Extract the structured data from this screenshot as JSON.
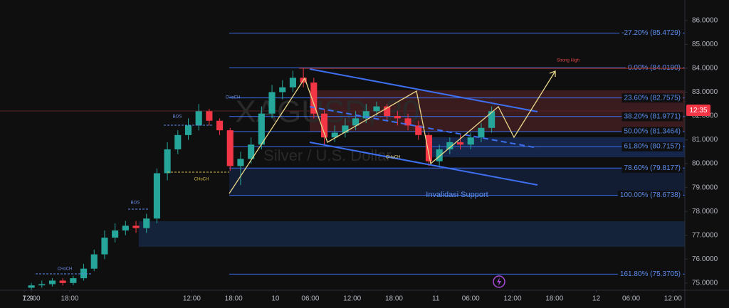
{
  "chart_data": {
    "type": "candlestick",
    "watermark": "XAGUSD, 30",
    "subtitle": "Silver / U.S. Dollar",
    "up_color": "#26a69a",
    "down_color": "#f23645",
    "x": [
      9,
      12,
      15,
      18,
      21,
      24,
      27,
      30,
      33,
      36,
      39,
      42,
      45,
      48,
      51,
      54,
      57,
      60,
      63,
      66,
      69,
      72,
      75,
      78,
      81,
      84,
      87,
      90,
      93,
      96,
      99,
      102,
      105,
      108,
      111,
      114,
      117,
      120,
      123,
      126,
      129,
      132,
      135,
      138,
      141
    ],
    "open": [
      74.8,
      74.9,
      74.95,
      75.1,
      75.0,
      75.2,
      75.6,
      76.2,
      76.9,
      77.2,
      77.4,
      77.3,
      77.7,
      79.6,
      80.6,
      81.2,
      81.6,
      82.2,
      81.8,
      81.4,
      79.9,
      80.2,
      80.8,
      82.1,
      83.0,
      83.2,
      83.6,
      83.4,
      82.1,
      81.1,
      81.3,
      81.6,
      81.9,
      82.2,
      82.4,
      82.0,
      81.9,
      81.6,
      81.2,
      80.1,
      80.6,
      80.9,
      80.8,
      81.1,
      81.5
    ],
    "close": [
      74.9,
      74.95,
      75.1,
      75.0,
      75.2,
      75.6,
      76.2,
      76.9,
      77.2,
      77.4,
      77.3,
      77.7,
      79.6,
      80.6,
      81.2,
      81.6,
      82.2,
      81.8,
      81.4,
      79.9,
      80.2,
      80.8,
      82.1,
      83.0,
      83.2,
      83.6,
      83.4,
      82.1,
      81.1,
      81.3,
      81.6,
      81.9,
      82.2,
      82.4,
      82.0,
      81.9,
      81.6,
      81.2,
      80.1,
      80.6,
      80.9,
      80.8,
      81.1,
      81.5,
      82.2
    ],
    "high": [
      75.0,
      75.1,
      75.2,
      75.2,
      75.3,
      75.8,
      76.4,
      77.2,
      77.5,
      77.6,
      77.6,
      77.9,
      79.8,
      80.9,
      81.4,
      81.9,
      82.5,
      82.3,
      81.9,
      81.5,
      80.5,
      81.1,
      82.4,
      83.3,
      83.5,
      83.9,
      84.0,
      83.6,
      82.3,
      81.6,
      81.9,
      82.2,
      82.5,
      82.6,
      82.5,
      82.2,
      82.1,
      81.8,
      81.3,
      80.8,
      81.1,
      81.2,
      81.3,
      81.7,
      82.4
    ],
    "low": [
      74.7,
      74.8,
      74.85,
      74.9,
      74.9,
      75.1,
      75.5,
      76.0,
      76.7,
      77.0,
      77.1,
      77.1,
      77.5,
      79.3,
      80.4,
      81.0,
      81.4,
      81.6,
      81.2,
      79.7,
      79.1,
      80.0,
      80.6,
      81.9,
      82.7,
      83.0,
      83.2,
      81.9,
      80.8,
      80.9,
      81.1,
      81.4,
      81.7,
      82.0,
      81.8,
      81.6,
      81.4,
      81.0,
      79.9,
      79.9,
      80.4,
      80.6,
      80.6,
      80.9,
      81.3
    ],
    "xlim": [
      0,
      196
    ],
    "xticks": [
      {
        "value": 9,
        "label": "12:00"
      },
      {
        "value": 20,
        "label": "18:00"
      },
      7,
      9,
      {
        "value": 55,
        "label": "12:00"
      },
      {
        "value": 67,
        "label": "18:00"
      },
      {
        "value": 79,
        "label": "10"
      },
      {
        "value": 89,
        "label": "06:00"
      },
      {
        "value": 101,
        "label": "12:00"
      },
      {
        "value": 113,
        "label": "18:00"
      },
      {
        "value": 125,
        "label": "11"
      },
      {
        "value": 135,
        "label": "06:00"
      },
      {
        "value": 147,
        "label": "12:00"
      },
      {
        "value": 159,
        "label": "18:00"
      },
      {
        "value": 171,
        "label": "12"
      },
      {
        "value": 181,
        "label": "06:00"
      },
      {
        "value": 193,
        "label": "12:00"
      }
    ],
    "ylim": [
      74.13,
      86.86
    ],
    "yticks": [
      {
        "value": 86,
        "label": "86.0000"
      },
      {
        "value": 85,
        "label": "85.0000"
      },
      {
        "value": 84,
        "label": "84.0000"
      },
      {
        "value": 83,
        "label": "83.0000"
      },
      {
        "value": 82,
        "label": "82.0000"
      },
      {
        "value": 81,
        "label": "81.0000"
      },
      {
        "value": 80,
        "label": "80.0000"
      },
      {
        "value": 79,
        "label": "79.0000"
      },
      {
        "value": 78,
        "label": "78.0000"
      },
      {
        "value": 77,
        "label": "77.0000"
      },
      {
        "value": 76,
        "label": "76.0000"
      },
      {
        "value": 75,
        "label": "75.0000"
      }
    ],
    "fib_levels": [
      {
        "value": 85.4729,
        "label": "-27.20% (85.4729)"
      },
      {
        "value": 84.019,
        "label": "0.00% (84.0190)"
      },
      {
        "value": 82.7575,
        "label": "23.60% (82.7575)"
      },
      {
        "value": 81.9771,
        "label": "38.20% (81.9771)"
      },
      {
        "value": 81.3464,
        "label": "50.00% (81.3464)"
      },
      {
        "value": 80.7157,
        "label": "61.80% (80.7157)"
      },
      {
        "value": 79.8177,
        "label": "78.60% (79.8177)"
      },
      {
        "value": 78.6738,
        "label": "100.00% (78.6738)"
      },
      {
        "value": 75.3705,
        "label": "161.80% (75.3705)"
      }
    ],
    "annotations": [
      "Strong High",
      "Invalidasi Support",
      "CHoCH",
      "BOS",
      "CHoCH",
      "BOS",
      "CHoCH",
      "CHoCH"
    ],
    "countdown": "12:35"
  }
}
